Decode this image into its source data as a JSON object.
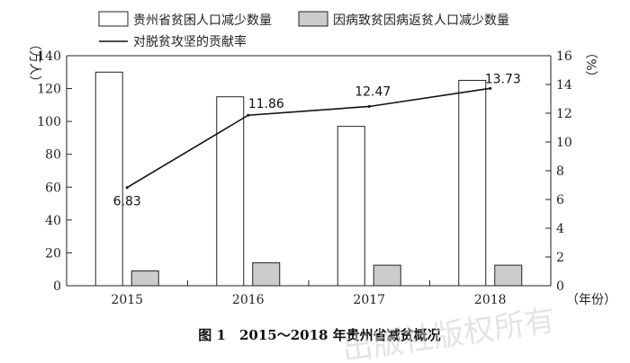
{
  "chart_data": {
    "type": "bar",
    "categories": [
      "2015",
      "2016",
      "2017",
      "2018"
    ],
    "series": [
      {
        "name": "贵州省贫困人口减少数量",
        "kind": "bar",
        "axis": "left",
        "color": "#ffffff",
        "values": [
          130,
          115,
          97,
          125
        ]
      },
      {
        "name": "因病致贫因病返贫人口减少数量",
        "kind": "bar",
        "axis": "left",
        "color": "#cccccc",
        "values": [
          9,
          14,
          12.5,
          12.5
        ]
      },
      {
        "name": "对脱贫攻坚的贡献率",
        "kind": "line",
        "axis": "right",
        "color": "#111111",
        "values": [
          6.83,
          11.86,
          12.47,
          13.73
        ]
      }
    ],
    "data_labels": [
      "6.83",
      "11.86",
      "12.47",
      "13.73"
    ],
    "ylim_left": [
      0,
      140
    ],
    "yticks_left": [
      0,
      20,
      40,
      60,
      80,
      100,
      120,
      140
    ],
    "ylim_right": [
      0,
      16
    ],
    "yticks_right": [
      0,
      2,
      4,
      6,
      8,
      10,
      12,
      14,
      16
    ],
    "ylabel_left": "（万人）",
    "ylabel_right": "（%）",
    "xlabel": "（年份）",
    "title": "图 1　2015～2018 年贵州省减贫概况",
    "grid": false,
    "legend": "top"
  },
  "watermark": "出版社版权所有"
}
